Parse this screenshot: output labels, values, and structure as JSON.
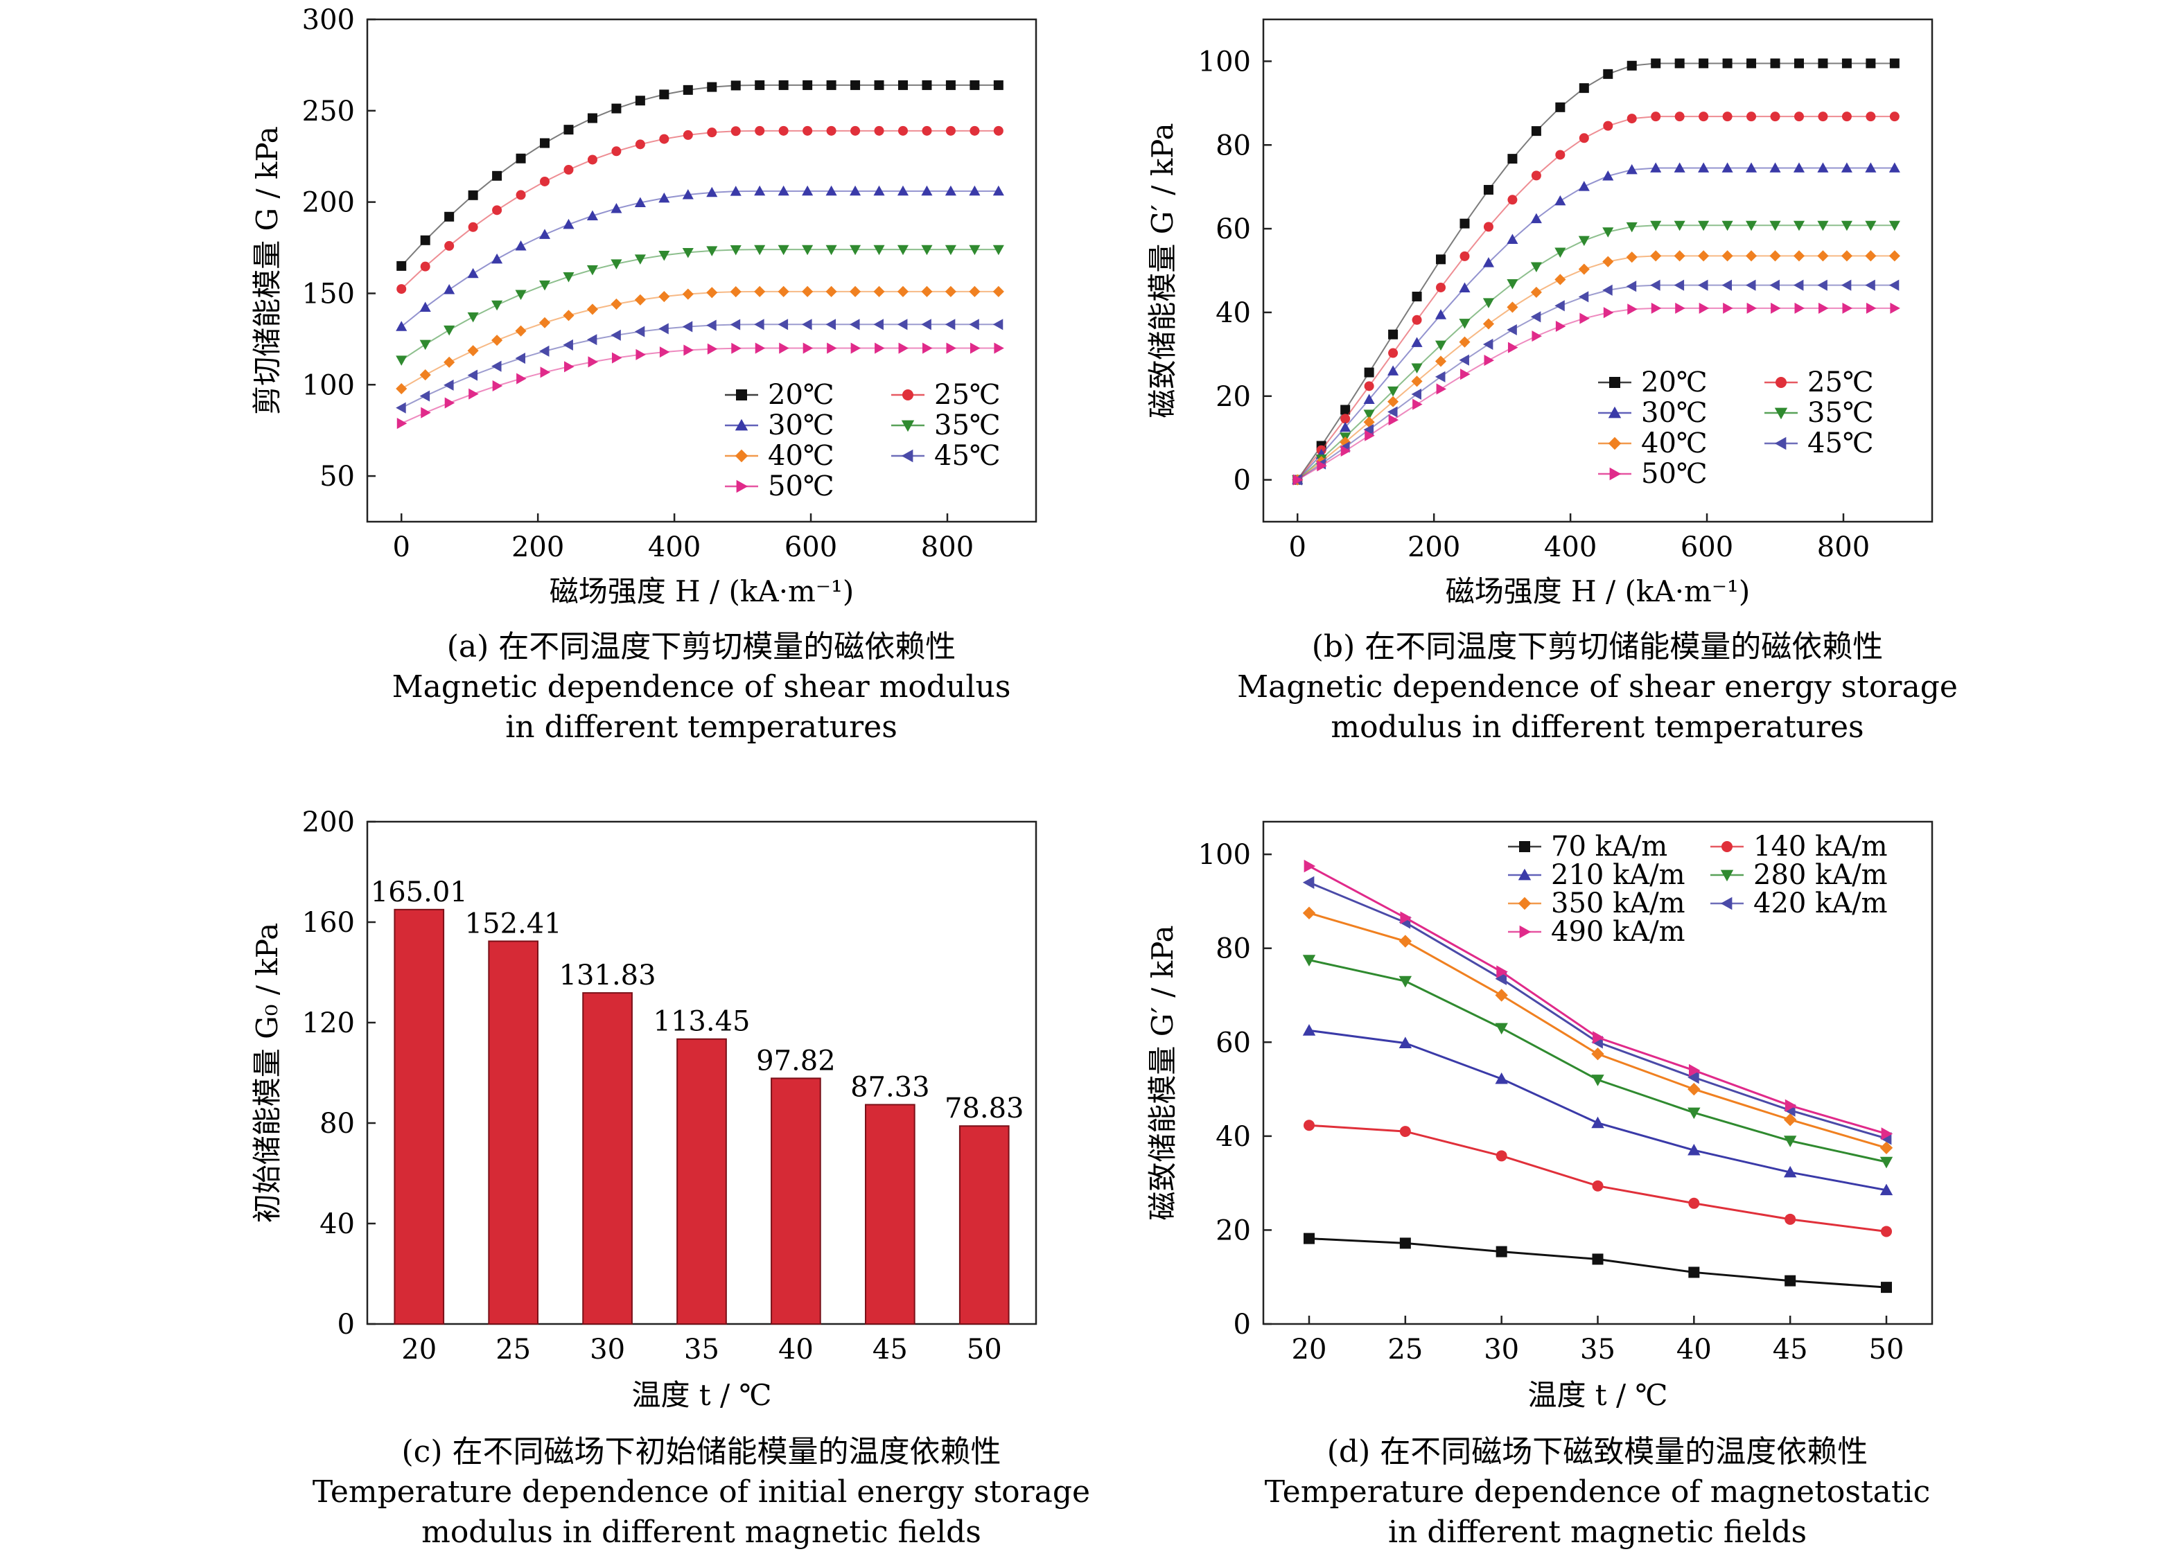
{
  "colors": {
    "20": "#111111",
    "25": "#e0303a",
    "30": "#3a3aa8",
    "35": "#2f8a2f",
    "40": "#f08020",
    "45": "#4a4aa8",
    "50": "#e02a8a",
    "bar": "#d62a36"
  },
  "chart_data": [
    {
      "id": "a",
      "type": "line",
      "xlabel": "磁场强度 H / (kA·m⁻¹)",
      "ylabel": "剪切储能模量 G / kPa",
      "xlim": [
        -50,
        930
      ],
      "ylim": [
        25,
        300
      ],
      "xticks": [
        0,
        200,
        400,
        600,
        800
      ],
      "yticks": [
        50,
        100,
        150,
        200,
        250,
        300
      ],
      "x": [
        0,
        35,
        70,
        105,
        140,
        175,
        210,
        245,
        280,
        315,
        350,
        385,
        420,
        455,
        490,
        525,
        560,
        595,
        630,
        665,
        700,
        735,
        770,
        805,
        840,
        875
      ],
      "series": [
        {
          "name": "20℃",
          "key": "20",
          "start": 165.01,
          "plateau": 264,
          "k": 0.0042
        },
        {
          "name": "25℃",
          "key": "25",
          "start": 152.41,
          "plateau": 239,
          "k": 0.0042
        },
        {
          "name": "30℃",
          "key": "30",
          "start": 131.83,
          "plateau": 206,
          "k": 0.0042
        },
        {
          "name": "35℃",
          "key": "35",
          "start": 113.45,
          "plateau": 174,
          "k": 0.0042
        },
        {
          "name": "40℃",
          "key": "40",
          "start": 97.82,
          "plateau": 151,
          "k": 0.0042
        },
        {
          "name": "45℃",
          "key": "45",
          "start": 87.33,
          "plateau": 133,
          "k": 0.0042
        },
        {
          "name": "50℃",
          "key": "50",
          "start": 78.83,
          "plateau": 120,
          "k": 0.0042
        }
      ],
      "caption": [
        "(a) 在不同温度下剪切模量的磁依赖性",
        "Magnetic dependence of shear modulus",
        "in different temperatures"
      ]
    },
    {
      "id": "b",
      "type": "line",
      "xlabel": "磁场强度 H / (kA·m⁻¹)",
      "ylabel": "磁致储能模量 G′ / kPa",
      "xlim": [
        -50,
        930
      ],
      "ylim": [
        -10,
        110
      ],
      "xticks": [
        0,
        200,
        400,
        600,
        800
      ],
      "yticks": [
        0,
        20,
        40,
        60,
        80,
        100
      ],
      "x": [
        0,
        35,
        70,
        105,
        140,
        175,
        210,
        245,
        280,
        315,
        350,
        385,
        420,
        455,
        490,
        525,
        560,
        595,
        630,
        665,
        700,
        735,
        770,
        805,
        840,
        875
      ],
      "series": [
        {
          "name": "20℃",
          "key": "20",
          "plateau": 99.5,
          "m": 1.12
        },
        {
          "name": "25℃",
          "key": "25",
          "plateau": 86.8,
          "m": 1.12
        },
        {
          "name": "30℃",
          "key": "30",
          "plateau": 74.5,
          "m": 1.12
        },
        {
          "name": "35℃",
          "key": "35",
          "plateau": 60.8,
          "m": 1.12
        },
        {
          "name": "40℃",
          "key": "40",
          "plateau": 53.5,
          "m": 1.12
        },
        {
          "name": "45℃",
          "key": "45",
          "plateau": 46.5,
          "m": 1.12
        },
        {
          "name": "50℃",
          "key": "50",
          "plateau": 41,
          "m": 1.12
        }
      ],
      "caption": [
        "(b) 在不同温度下剪切储能模量的磁依赖性",
        "Magnetic dependence of shear energy storage",
        "modulus in different temperatures"
      ]
    },
    {
      "id": "c",
      "type": "bar",
      "xlabel": "温度 t / ℃",
      "ylabel": "初始储能模量 G₀ / kPa",
      "ylim": [
        0,
        200
      ],
      "yticks": [
        0,
        40,
        80,
        120,
        160,
        200
      ],
      "categories": [
        "20",
        "25",
        "30",
        "35",
        "40",
        "45",
        "50"
      ],
      "values": [
        165.01,
        152.41,
        131.83,
        113.45,
        97.82,
        87.33,
        78.83
      ],
      "labels": [
        "165.01",
        "152.41",
        "131.83",
        "113.45",
        "97.82",
        "87.33",
        "78.83"
      ],
      "caption": [
        "(c) 在不同磁场下初始储能模量的温度依赖性",
        "Temperature dependence of initial energy storage",
        "modulus in different magnetic fields"
      ]
    },
    {
      "id": "d",
      "type": "line",
      "xlabel": "温度 t / ℃",
      "ylabel": "磁致储能模量 G′ / kPa",
      "ylim": [
        0,
        100
      ],
      "yticks": [
        0,
        20,
        40,
        60,
        80,
        100
      ],
      "x": [
        20,
        25,
        30,
        35,
        40,
        45,
        50
      ],
      "xticks": [
        20,
        25,
        30,
        35,
        40,
        45,
        50
      ],
      "series": [
        {
          "name": "70 kA/m",
          "key": "20",
          "values": [
            18.2,
            17.2,
            15.4,
            13.8,
            11.0,
            9.2,
            7.8
          ]
        },
        {
          "name": "140 kA/m",
          "key": "25",
          "values": [
            42.3,
            41.0,
            35.8,
            29.4,
            25.7,
            22.3,
            19.7
          ]
        },
        {
          "name": "210 kA/m",
          "key": "30",
          "values": [
            62.5,
            59.8,
            52.2,
            42.8,
            37.0,
            32.3,
            28.5
          ]
        },
        {
          "name": "280 kA/m",
          "key": "35",
          "values": [
            77.5,
            73.0,
            63.0,
            52.0,
            45.0,
            39.0,
            34.5
          ]
        },
        {
          "name": "350 kA/m",
          "key": "40",
          "values": [
            87.5,
            81.5,
            70.0,
            57.5,
            50.0,
            43.5,
            37.5
          ]
        },
        {
          "name": "420 kA/m",
          "key": "45",
          "values": [
            94.0,
            85.5,
            73.5,
            60.0,
            52.5,
            45.5,
            39.5
          ]
        },
        {
          "name": "490 kA/m",
          "key": "50",
          "values": [
            97.5,
            86.5,
            75.0,
            61.0,
            54.0,
            46.5,
            40.5
          ]
        }
      ],
      "caption": [
        "(d) 在不同磁场下磁致模量的温度依赖性",
        "Temperature dependence of magnetostatic",
        "in different magnetic fields"
      ]
    }
  ]
}
